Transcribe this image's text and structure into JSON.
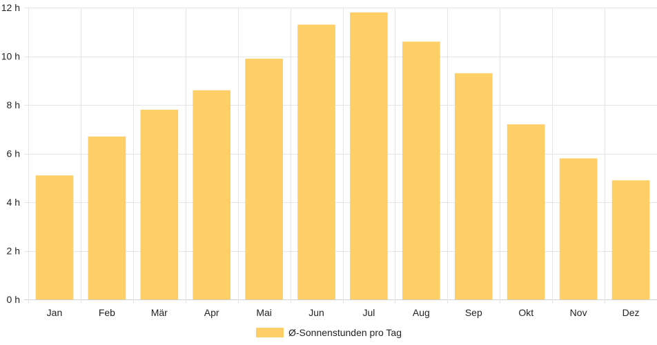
{
  "chart_data": {
    "type": "bar",
    "categories": [
      "Jan",
      "Feb",
      "Mär",
      "Apr",
      "Mai",
      "Jun",
      "Jul",
      "Aug",
      "Sep",
      "Okt",
      "Nov",
      "Dez"
    ],
    "series": [
      {
        "name": "Ø-Sonnenstunden pro Tag",
        "values": [
          5.1,
          6.7,
          7.8,
          8.6,
          9.9,
          11.3,
          11.8,
          10.6,
          9.3,
          7.2,
          5.8,
          4.9
        ],
        "color": "#fecf66"
      }
    ],
    "ylim": [
      0,
      12
    ],
    "y_ticks": [
      0,
      2,
      4,
      6,
      8,
      10,
      12
    ],
    "y_tick_suffix": " h",
    "grid": true,
    "grid_color": "#e5e5e5",
    "legend_position": "bottom"
  }
}
